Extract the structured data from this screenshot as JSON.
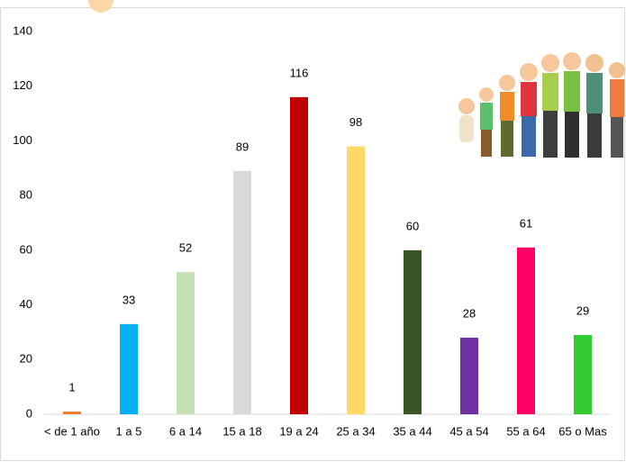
{
  "chart_data": {
    "type": "bar",
    "categories": [
      "< de 1 año",
      "1 a 5",
      "6 a 14",
      "15 a 18",
      "19 a 24",
      "25 a 34",
      "35 a 44",
      "45 a 54",
      "55 a 64",
      "65 o Mas"
    ],
    "values": [
      1,
      33,
      52,
      89,
      116,
      98,
      60,
      28,
      61,
      29
    ],
    "colors": [
      "#ed7d31",
      "#00b0f0",
      "#c5e0b4",
      "#d9d9d9",
      "#c00000",
      "#ffd966",
      "#375623",
      "#7030a0",
      "#ff0066",
      "#33cc33"
    ],
    "ylim": [
      0,
      140
    ],
    "yticks": [
      0,
      20,
      40,
      60,
      80,
      100,
      120,
      140
    ],
    "grid": false
  }
}
